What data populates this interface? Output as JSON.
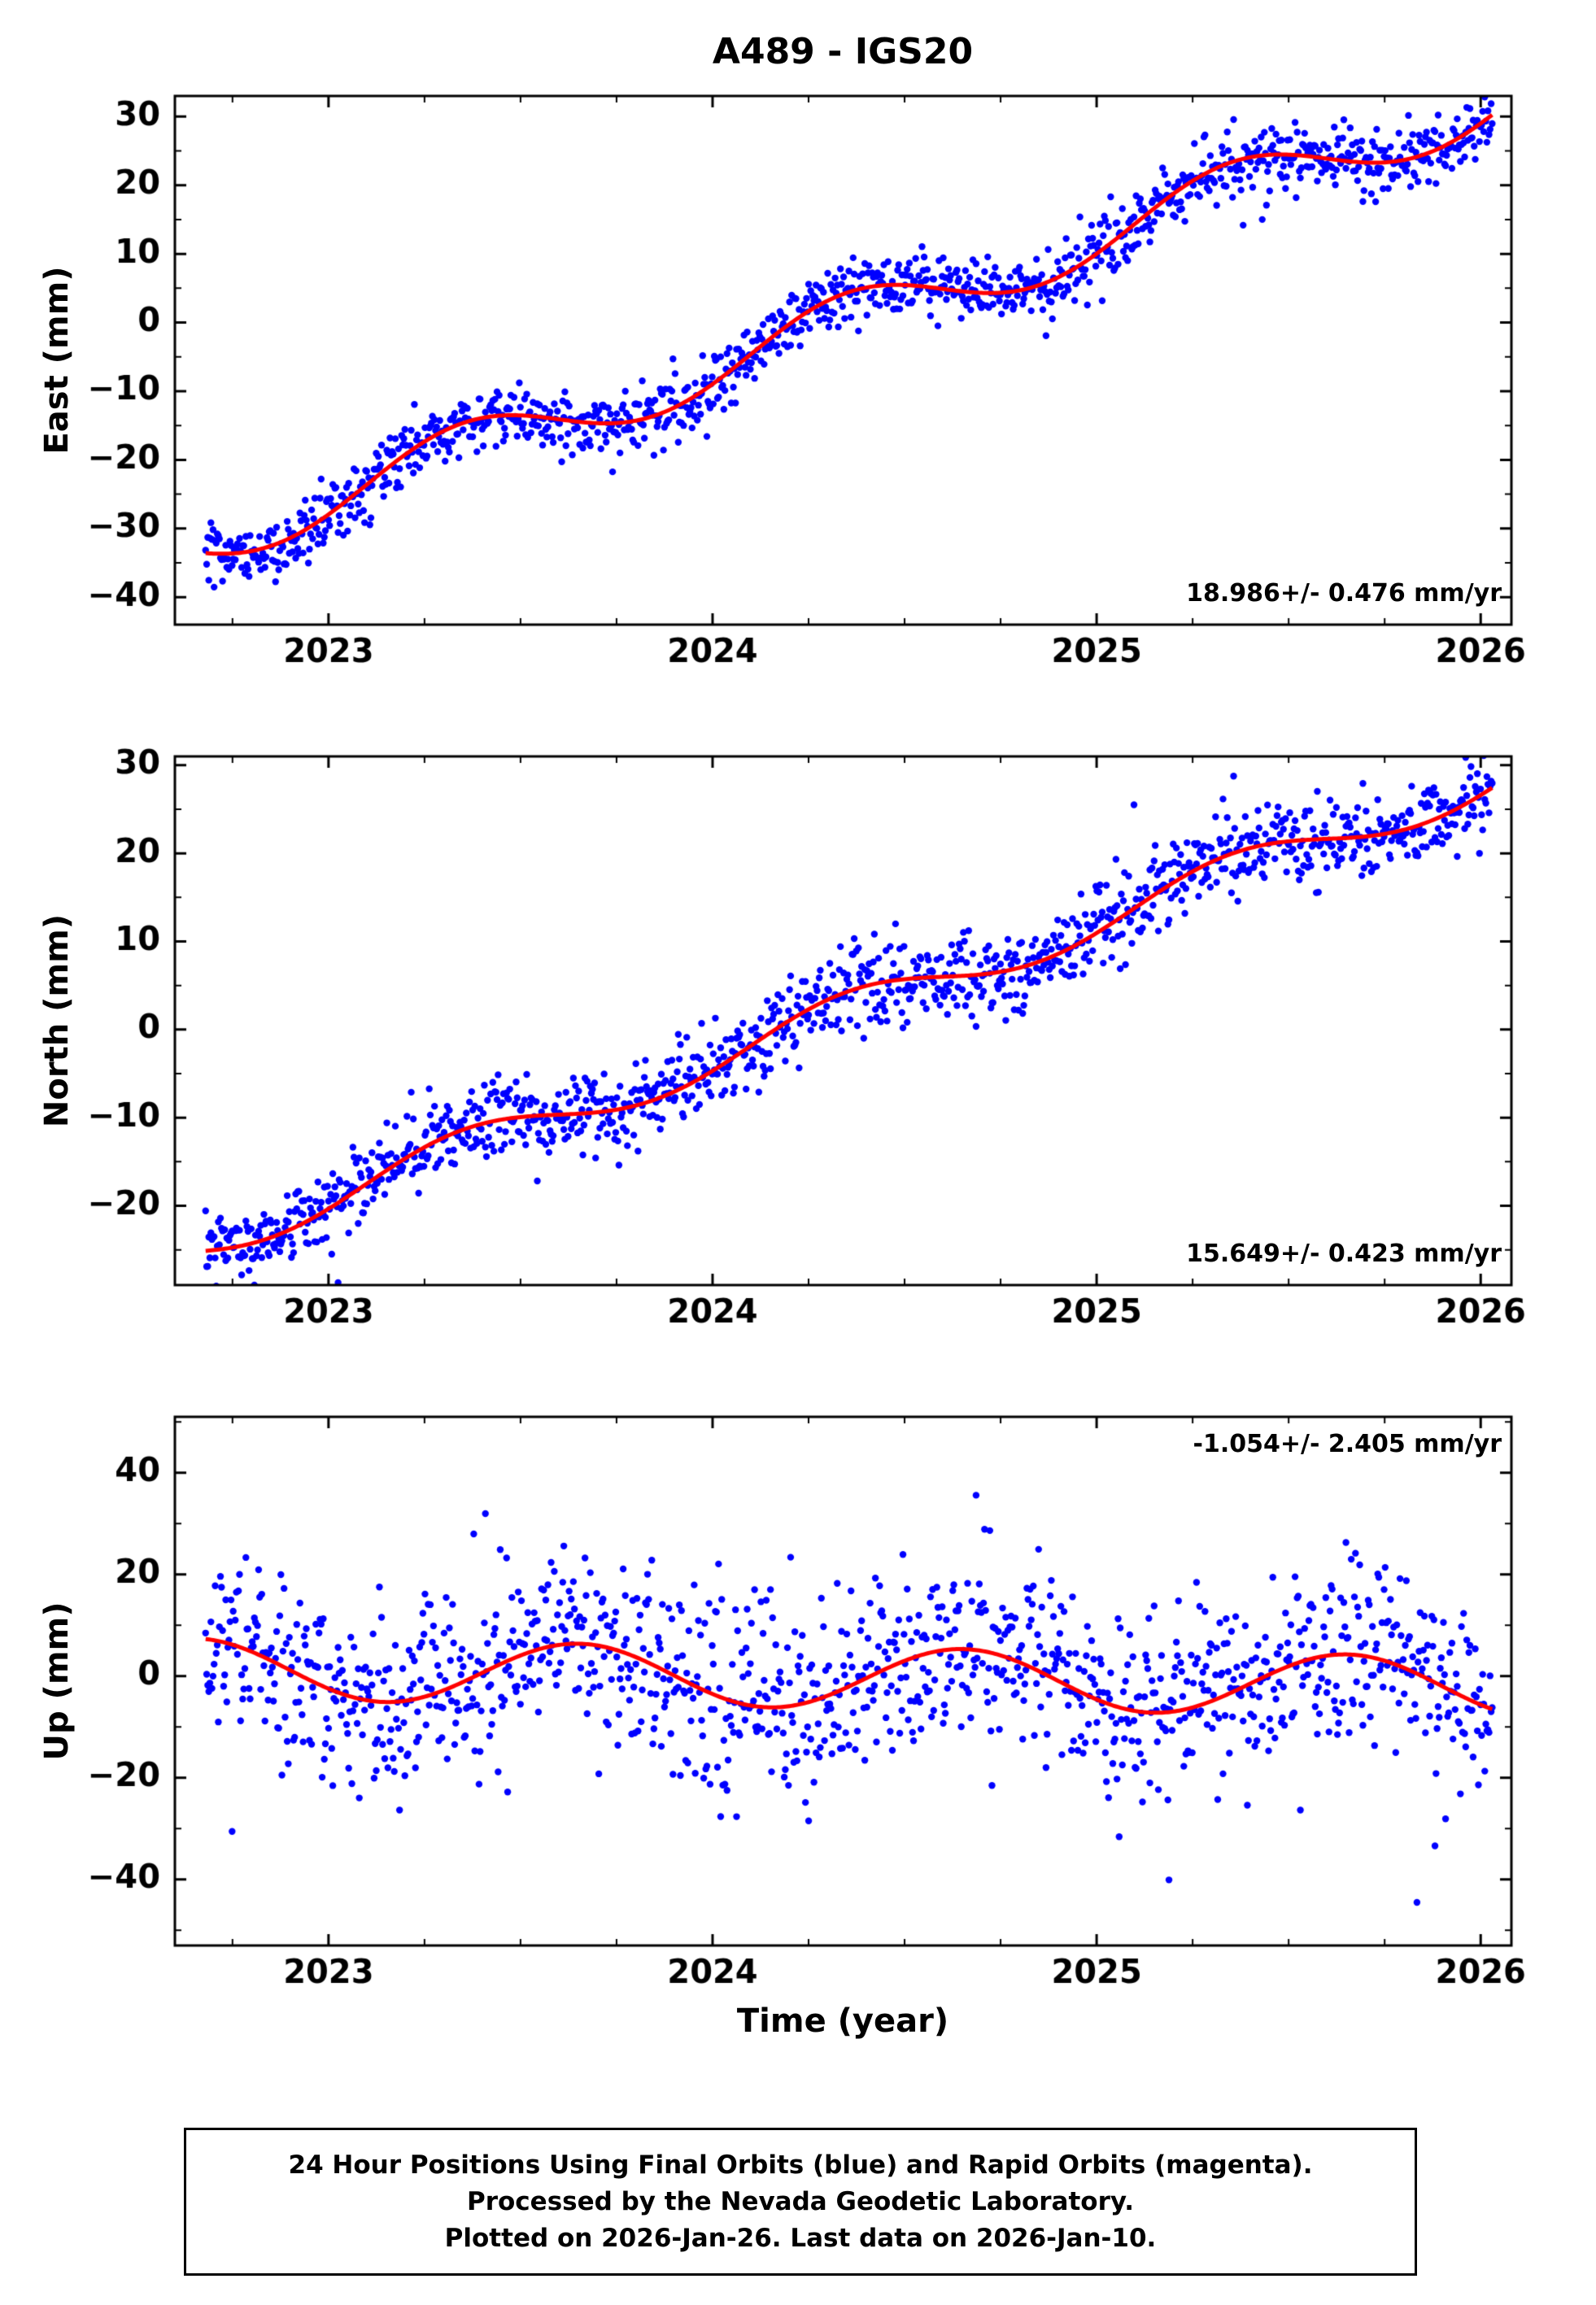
{
  "title": "A489 - IGS20",
  "xlabel": "Time (year)",
  "colors": {
    "points": "#0000ff",
    "model": "#ff0000",
    "frame": "#000000",
    "text": "#000000"
  },
  "footer": {
    "line1": "24 Hour Positions Using Final Orbits (blue) and Rapid Orbits (magenta).",
    "line2": "Processed by the Nevada Geodetic Laboratory.",
    "line3": "Plotted on 2026-Jan-26. Last data on 2026-Jan-10."
  },
  "chart_data": [
    {
      "type": "scatter",
      "name": "east",
      "ylabel": "East (mm)",
      "annotation": "18.986+/- 0.476 mm/yr",
      "annotation_position": "bottom-right",
      "x_units": "decimal year",
      "xlim": [
        2022.6,
        2026.08
      ],
      "ylim": [
        -44,
        33
      ],
      "xticks": [
        2023,
        2024,
        2025,
        2026
      ],
      "yticks": [
        -40,
        -30,
        -20,
        -10,
        0,
        10,
        20,
        30
      ],
      "x_minor_step": 0.25,
      "y_minor_step": 5,
      "trend": {
        "rate_mm_per_yr": 18.986,
        "rate_sigma_mm_per_yr": 0.476,
        "value_at_2024": -6.5,
        "annual_amp_mm": 4.2,
        "annual_phase": 0.1
      },
      "scatter": {
        "t_start": 2022.68,
        "t_end": 2026.03,
        "n": 1215,
        "sigma_mm": 2.3,
        "seed": 101
      }
    },
    {
      "type": "scatter",
      "name": "north",
      "ylabel": "North (mm)",
      "annotation": "15.649+/- 0.423 mm/yr",
      "annotation_position": "bottom-right",
      "x_units": "decimal year",
      "xlim": [
        2022.6,
        2026.08
      ],
      "ylim": [
        -29,
        31
      ],
      "xticks": [
        2023,
        2024,
        2025,
        2026
      ],
      "yticks": [
        -20,
        -10,
        0,
        10,
        20,
        30
      ],
      "x_minor_step": 0.25,
      "y_minor_step": 5,
      "trend": {
        "rate_mm_per_yr": 15.649,
        "rate_sigma_mm_per_yr": 0.423,
        "value_at_2024": -3.4,
        "annual_amp_mm": 2.2,
        "annual_phase": 0.1
      },
      "scatter": {
        "t_start": 2022.68,
        "t_end": 2026.03,
        "n": 1215,
        "sigma_mm": 2.3,
        "seed": 202
      }
    },
    {
      "type": "scatter",
      "name": "up",
      "ylabel": "Up (mm)",
      "annotation": "-1.054+/- 2.405 mm/yr",
      "annotation_position": "top-right",
      "x_units": "decimal year",
      "xlim": [
        2022.6,
        2026.08
      ],
      "ylim": [
        -53,
        51
      ],
      "xticks": [
        2023,
        2024,
        2025,
        2026
      ],
      "yticks": [
        -40,
        -20,
        0,
        20,
        40
      ],
      "x_minor_step": 0.25,
      "y_minor_step": 10,
      "trend": {
        "rate_mm_per_yr": -1.054,
        "rate_sigma_mm_per_yr": 2.405,
        "value_at_2024": 0.0,
        "annual_amp_mm": 6.0,
        "annual_phase": 0.4
      },
      "scatter": {
        "t_start": 2022.68,
        "t_end": 2026.03,
        "n": 1215,
        "sigma_mm": 9.5,
        "seed": 303
      }
    }
  ]
}
